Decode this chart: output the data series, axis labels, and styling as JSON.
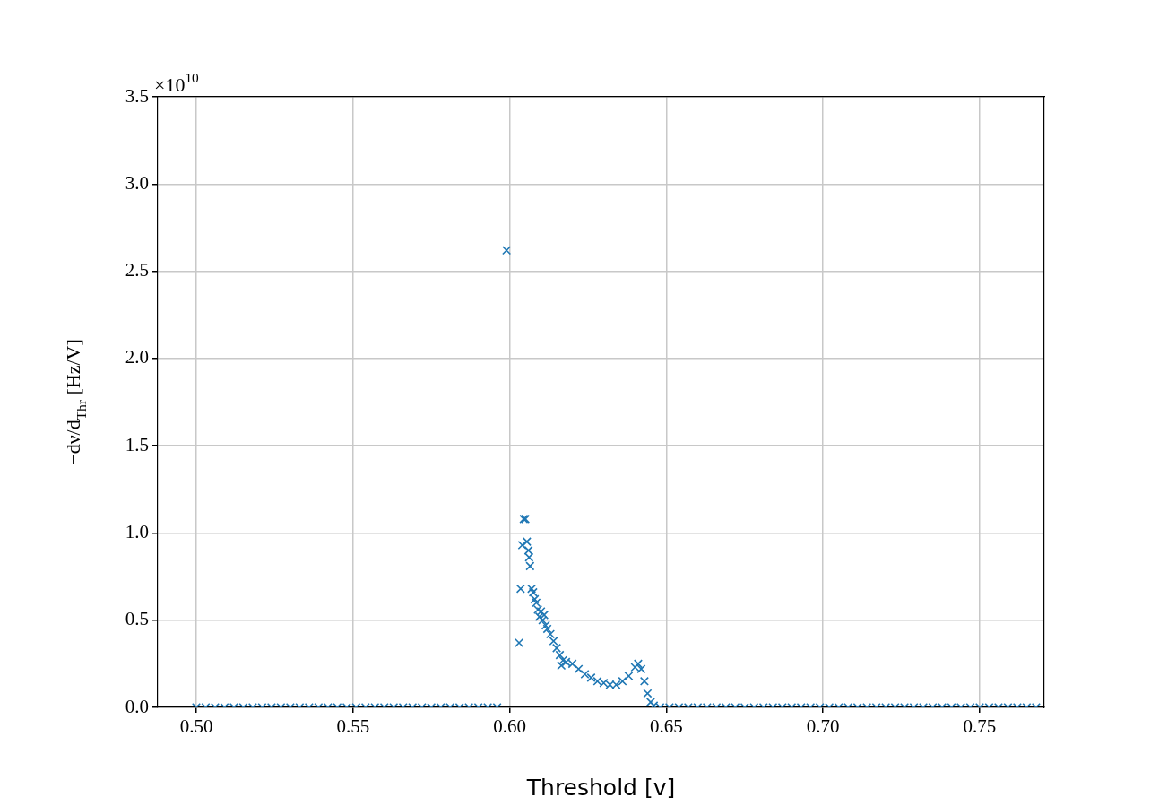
{
  "chart_data": {
    "type": "scatter",
    "xlabel": "Threshold [v]",
    "ylabel": "−dν/d$_{Thr}$ [Hz/V]",
    "annotations": [
      "×10$^{10}$"
    ],
    "xlim": [
      0.4877,
      0.7706
    ],
    "xticks": [
      {
        "value": 0.5,
        "label": "0.50"
      },
      {
        "value": 0.55,
        "label": "0.55"
      },
      {
        "value": 0.6,
        "label": "0.60"
      },
      {
        "value": 0.65,
        "label": "0.65"
      },
      {
        "value": 0.7,
        "label": "0.70"
      },
      {
        "value": 0.75,
        "label": "0.75"
      }
    ],
    "ylim": [
      0,
      3.5
    ],
    "yticks": [
      {
        "value": 0,
        "label": "0.0"
      },
      {
        "value": 0.5,
        "label": "0.5"
      },
      {
        "value": 1,
        "label": "1.0"
      },
      {
        "value": 1.5,
        "label": "1.5"
      },
      {
        "value": 2,
        "label": "2.0"
      },
      {
        "value": 2.5,
        "label": "2.5"
      },
      {
        "value": 3,
        "label": "3.0"
      },
      {
        "value": 3.5,
        "label": "3.5"
      }
    ],
    "grid": true,
    "marker": "cross",
    "series": [
      {
        "color": "#1f77b4",
        "x": [
          0.5,
          0.503,
          0.506,
          0.509,
          0.512,
          0.515,
          0.518,
          0.521,
          0.524,
          0.527,
          0.53,
          0.533,
          0.536,
          0.539,
          0.542,
          0.545,
          0.548,
          0.551,
          0.554,
          0.557,
          0.56,
          0.563,
          0.566,
          0.569,
          0.572,
          0.575,
          0.578,
          0.581,
          0.584,
          0.587,
          0.59,
          0.593,
          0.596,
          0.599,
          0.603,
          0.6035,
          0.604,
          0.6045,
          0.605,
          0.6055,
          0.606,
          0.6062,
          0.6065,
          0.607,
          0.6075,
          0.608,
          0.6085,
          0.609,
          0.6095,
          0.61,
          0.6105,
          0.611,
          0.6115,
          0.612,
          0.613,
          0.614,
          0.615,
          0.616,
          0.6165,
          0.617,
          0.618,
          0.62,
          0.622,
          0.624,
          0.626,
          0.628,
          0.63,
          0.632,
          0.634,
          0.636,
          0.638,
          0.64,
          0.641,
          0.642,
          0.643,
          0.644,
          0.645,
          0.646,
          0.648,
          0.651,
          0.654,
          0.657,
          0.66,
          0.663,
          0.666,
          0.669,
          0.672,
          0.675,
          0.678,
          0.681,
          0.684,
          0.687,
          0.69,
          0.693,
          0.696,
          0.699,
          0.702,
          0.705,
          0.708,
          0.711,
          0.714,
          0.717,
          0.72,
          0.723,
          0.726,
          0.729,
          0.732,
          0.735,
          0.738,
          0.741,
          0.744,
          0.747,
          0.75,
          0.753,
          0.756,
          0.759,
          0.762,
          0.765,
          0.768
        ],
        "values": [
          0,
          0,
          0,
          0,
          0,
          0,
          0,
          0,
          0,
          0,
          0,
          0,
          0,
          0,
          0,
          0,
          0,
          0,
          0,
          0,
          0,
          0,
          0,
          0,
          0,
          0,
          0,
          0,
          0,
          0,
          0,
          0,
          0,
          2.62,
          0.37,
          0.68,
          0.93,
          1.08,
          1.08,
          0.95,
          0.9,
          0.86,
          0.81,
          0.68,
          0.66,
          0.62,
          0.6,
          0.56,
          0.52,
          0.55,
          0.5,
          0.53,
          0.47,
          0.45,
          0.42,
          0.38,
          0.34,
          0.3,
          0.24,
          0.27,
          0.26,
          0.25,
          0.22,
          0.19,
          0.17,
          0.15,
          0.14,
          0.13,
          0.13,
          0.15,
          0.18,
          0.23,
          0.25,
          0.22,
          0.15,
          0.08,
          0.03,
          0.01,
          0,
          0,
          0,
          0,
          0,
          0,
          0,
          0,
          0,
          0,
          0,
          0,
          0,
          0,
          0,
          0,
          0,
          0,
          0,
          0,
          0,
          0,
          0,
          0,
          0,
          0,
          0,
          0,
          0,
          0,
          0,
          0,
          0,
          0,
          0,
          0,
          0,
          0,
          0,
          0,
          0
        ]
      }
    ]
  }
}
